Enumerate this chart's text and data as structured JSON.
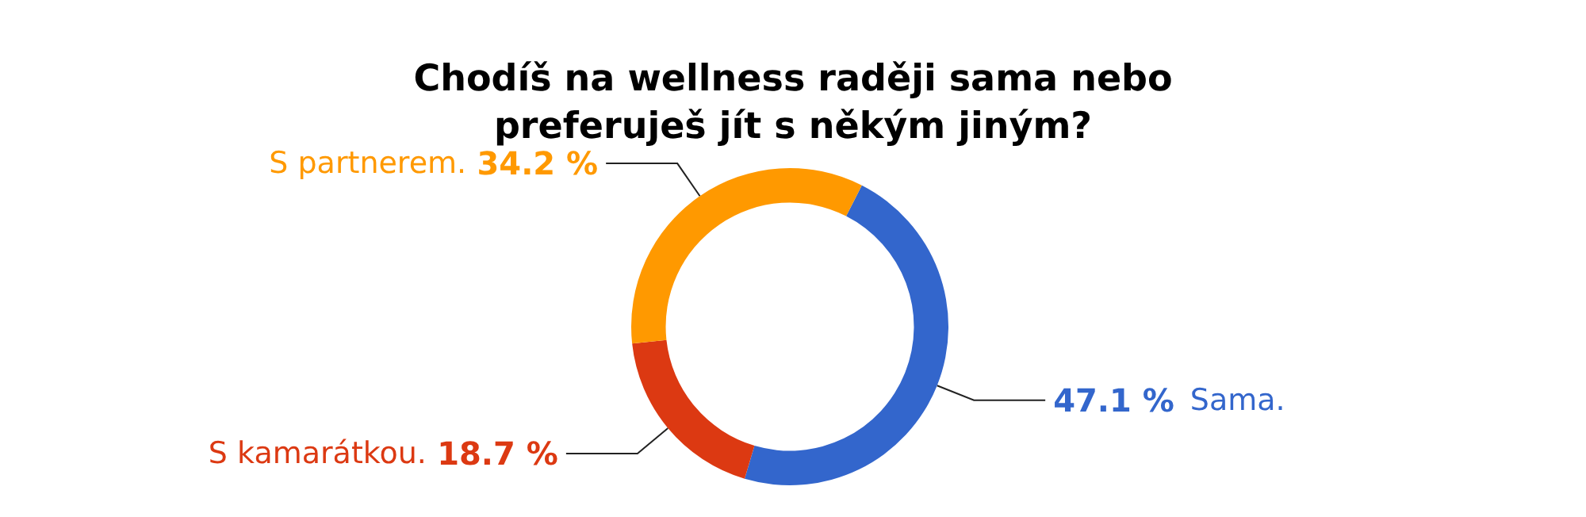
{
  "chart_data": {
    "type": "donut",
    "title": "Chodíš na wellness raději sama nebo\npreferuješ jít s někým jiným?",
    "categories": [
      "Sama.",
      "S kamarátkou.",
      "S partnerem."
    ],
    "values": [
      47.1,
      18.7,
      34.2
    ],
    "value_labels": [
      "47.1 %",
      "18.7 %",
      "34.2 %"
    ],
    "colors": [
      "#3366cc",
      "#dc3912",
      "#ff9900"
    ],
    "legend": false
  }
}
